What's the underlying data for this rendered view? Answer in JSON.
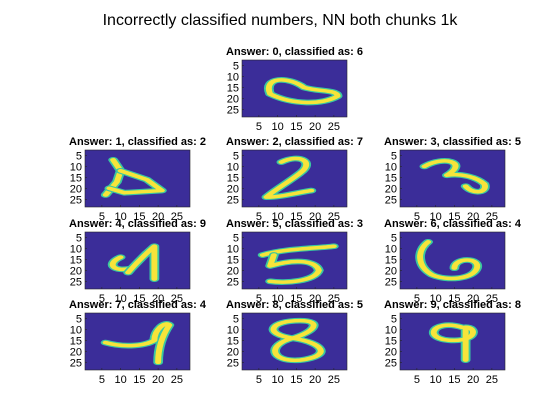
{
  "figure": {
    "title": "Incorrectly classified numbers, NN both chunks 1k"
  },
  "colors": {
    "background": "#3B2D99",
    "stroke": "#F7E43A",
    "edge": "#39C7A1"
  },
  "chart_data": {
    "type": "heatmap",
    "colormap": "parula",
    "image_size": [
      28,
      28
    ],
    "displayed_rows": [
      3,
      28
    ],
    "displayed_cols": [
      1,
      28
    ],
    "xticks": [
      5,
      10,
      15,
      20,
      25
    ],
    "yticks": [
      5,
      10,
      15,
      20,
      25
    ],
    "grid": false,
    "panels": [
      {
        "title": "Answer: 0, classified as: 6",
        "answer": 0,
        "classified_as": 6
      },
      {
        "title": "Answer: 1, classified as: 2",
        "answer": 1,
        "classified_as": 2
      },
      {
        "title": "Answer: 2, classified as: 7",
        "answer": 2,
        "classified_as": 7
      },
      {
        "title": "Answer: 3, classified as: 5",
        "answer": 3,
        "classified_as": 5
      },
      {
        "title": "Answer: 4, classified as: 9",
        "answer": 4,
        "classified_as": 9
      },
      {
        "title": "Answer: 5, classified as: 3",
        "answer": 5,
        "classified_as": 3
      },
      {
        "title": "Answer: 6, classified as: 4",
        "answer": 6,
        "classified_as": 4
      },
      {
        "title": "Answer: 7, classified as: 4",
        "answer": 7,
        "classified_as": 4
      },
      {
        "title": "Answer: 8, classified as: 5",
        "answer": 8,
        "classified_as": 5
      },
      {
        "title": "Answer: 9, classified as: 8",
        "answer": 9,
        "classified_as": 8
      }
    ]
  }
}
